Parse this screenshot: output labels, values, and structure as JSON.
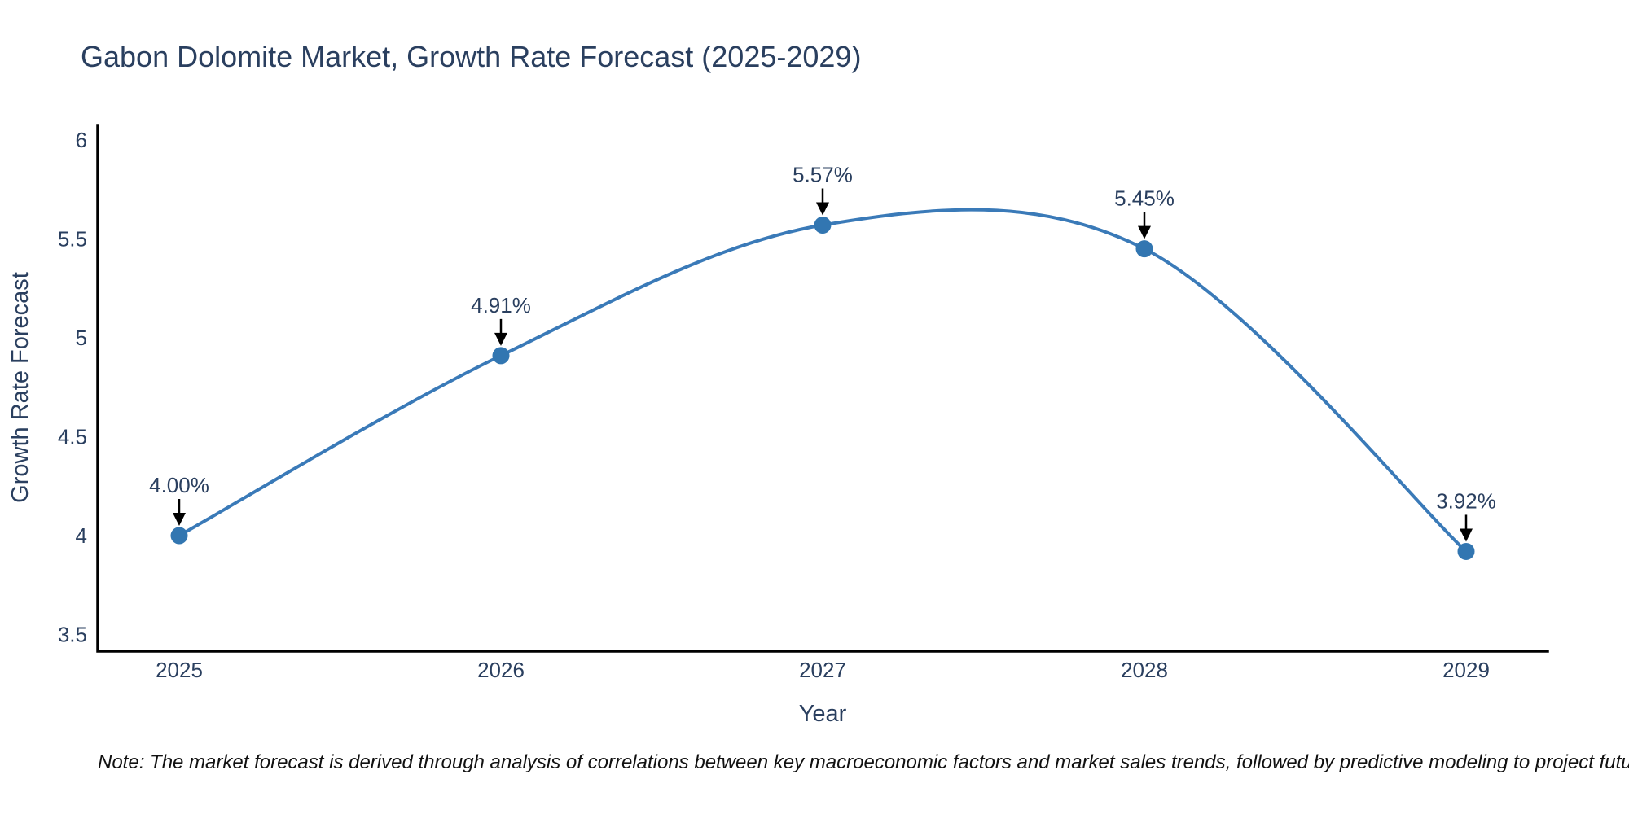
{
  "chart_data": {
    "type": "line",
    "title": "Gabon Dolomite Market, Growth Rate Forecast (2025-2029)",
    "xlabel": "Year",
    "ylabel": "Growth Rate Forecast",
    "categories": [
      "2025",
      "2026",
      "2027",
      "2028",
      "2029"
    ],
    "series": [
      {
        "name": "Growth Rate Forecast",
        "values": [
          4.0,
          4.91,
          5.57,
          5.45,
          3.92
        ],
        "point_labels": [
          "4.00%",
          "4.91%",
          "5.57%",
          "5.45%",
          "3.92%"
        ]
      }
    ],
    "ylim": [
      3.5,
      6
    ],
    "yticks": [
      3.5,
      4,
      4.5,
      5,
      5.5,
      6
    ],
    "ytick_labels": [
      "3.5",
      "4",
      "4.5",
      "5",
      "5.5",
      "6"
    ],
    "line_shape": "spline",
    "grid": false,
    "legend_position": "none",
    "colors": {
      "line": "#3a7ab8",
      "marker": "#3276b1",
      "axis": "#000000",
      "text": "#2a3f5f",
      "arrow": "#000000",
      "note": "#111111"
    }
  },
  "note": "Note: The market forecast is derived through analysis of correlations between key macroeconomic factors and market sales trends, followed by predictive modeling to project future sales"
}
